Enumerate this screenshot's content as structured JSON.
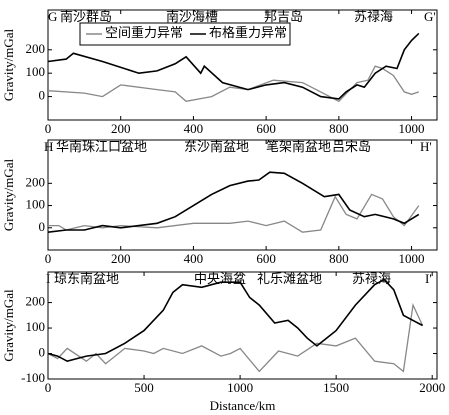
{
  "chart_data": [
    {
      "type": "line",
      "ylabel": "Gravity/mGal",
      "annotations": [
        "G",
        "南沙群岛",
        "南沙海槽",
        "邦吉岛",
        "苏禄海",
        "G'"
      ],
      "legend": "upper left",
      "xlim": [
        0,
        1070
      ],
      "xticks": [
        0,
        200,
        400,
        600,
        800,
        1000
      ],
      "ylim": [
        -100,
        370
      ],
      "yticks": [
        0,
        100,
        200
      ],
      "series": [
        {
          "name": "空间重力异常",
          "color": "#888888",
          "x": [
            0,
            100,
            150,
            200,
            300,
            350,
            380,
            450,
            500,
            550,
            620,
            700,
            750,
            800,
            850,
            880,
            900,
            920,
            950,
            980,
            1000,
            1020
          ],
          "values": [
            25,
            15,
            0,
            50,
            30,
            20,
            -20,
            0,
            40,
            30,
            70,
            60,
            20,
            -20,
            60,
            70,
            130,
            120,
            90,
            20,
            10,
            20
          ]
        },
        {
          "name": "布格重力异常",
          "color": "#000000",
          "x": [
            0,
            50,
            70,
            150,
            250,
            300,
            350,
            380,
            420,
            430,
            480,
            550,
            600,
            650,
            700,
            750,
            800,
            820,
            850,
            870,
            900,
            930,
            960,
            980,
            1000,
            1020
          ],
          "values": [
            150,
            160,
            185,
            150,
            100,
            110,
            140,
            170,
            100,
            130,
            60,
            30,
            50,
            60,
            40,
            0,
            -10,
            20,
            50,
            40,
            100,
            130,
            120,
            200,
            240,
            270
          ]
        }
      ]
    },
    {
      "type": "line",
      "ylabel": "Gravity/mGal",
      "annotations": [
        "H",
        "华南珠江口盆地",
        "东沙南盆地",
        "笔架南盆地",
        "吕宋岛",
        "H'"
      ],
      "xlim": [
        0,
        1070
      ],
      "xticks": [
        0,
        200,
        400,
        600,
        800,
        1000
      ],
      "ylim": [
        -100,
        395
      ],
      "yticks": [
        0,
        100,
        200
      ],
      "series": [
        {
          "name": "空间重力异常",
          "color": "#888888",
          "x": [
            0,
            30,
            50,
            100,
            150,
            200,
            300,
            400,
            500,
            550,
            600,
            650,
            700,
            750,
            790,
            820,
            850,
            890,
            920,
            950,
            980,
            1020
          ],
          "values": [
            10,
            10,
            -10,
            10,
            0,
            10,
            0,
            20,
            20,
            30,
            10,
            30,
            -20,
            -10,
            140,
            60,
            40,
            150,
            130,
            50,
            10,
            100
          ]
        },
        {
          "name": "布格重力异常",
          "color": "#000000",
          "x": [
            0,
            50,
            100,
            150,
            200,
            250,
            300,
            350,
            400,
            450,
            500,
            550,
            580,
            610,
            650,
            700,
            760,
            800,
            830,
            870,
            900,
            950,
            980,
            1020
          ],
          "values": [
            -20,
            -10,
            -10,
            10,
            0,
            10,
            20,
            50,
            100,
            150,
            190,
            210,
            215,
            250,
            245,
            200,
            140,
            150,
            80,
            50,
            60,
            40,
            20,
            60
          ]
        }
      ]
    },
    {
      "type": "line",
      "ylabel": "Gravity/mGal",
      "xlabel": "Distance/km",
      "annotations": [
        "I",
        "琼东南盆地",
        "中央海盆",
        "礼乐滩盆地",
        "苏禄海",
        "I'"
      ],
      "xlim": [
        0,
        2025
      ],
      "xticks": [
        0,
        500,
        1000,
        1500,
        2000
      ],
      "ylim": [
        -100,
        320
      ],
      "yticks": [
        -100,
        0,
        100,
        200
      ],
      "series": [
        {
          "name": "空间重力异常",
          "color": "#888888",
          "x": [
            0,
            50,
            100,
            200,
            250,
            300,
            400,
            500,
            550,
            600,
            700,
            800,
            900,
            950,
            1000,
            1100,
            1200,
            1300,
            1400,
            1500,
            1600,
            1700,
            1800,
            1850,
            1900,
            1950
          ],
          "values": [
            0,
            -20,
            20,
            -30,
            0,
            -40,
            20,
            10,
            0,
            20,
            0,
            30,
            -10,
            0,
            20,
            -70,
            10,
            -10,
            40,
            30,
            60,
            -30,
            -40,
            -70,
            190,
            110
          ]
        },
        {
          "name": "布格重力异常",
          "color": "#000000",
          "x": [
            0,
            50,
            100,
            200,
            300,
            400,
            500,
            600,
            650,
            700,
            800,
            900,
            1000,
            1050,
            1100,
            1180,
            1250,
            1300,
            1350,
            1400,
            1450,
            1500,
            1600,
            1700,
            1750,
            1800,
            1850,
            1900,
            1950
          ],
          "values": [
            0,
            -10,
            -30,
            -10,
            0,
            40,
            90,
            170,
            240,
            270,
            260,
            280,
            280,
            220,
            190,
            120,
            130,
            100,
            60,
            30,
            60,
            90,
            190,
            270,
            290,
            250,
            150,
            130,
            110
          ]
        }
      ]
    }
  ]
}
